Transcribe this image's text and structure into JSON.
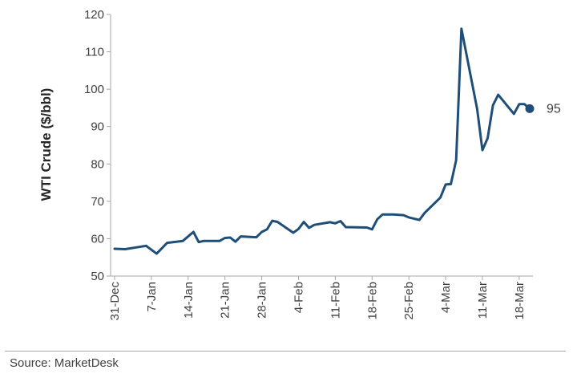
{
  "chart_data": {
    "type": "line",
    "title": "",
    "xlabel": "",
    "ylabel": "WTI Crude ($/bbl)",
    "ylim": [
      50,
      120
    ],
    "yticks": [
      50,
      60,
      70,
      80,
      90,
      100,
      110,
      120
    ],
    "xtick_labels": [
      "31-Dec",
      "7-Jan",
      "14-Jan",
      "21-Jan",
      "28-Jan",
      "4-Feb",
      "11-Feb",
      "18-Feb",
      "25-Feb",
      "4-Mar",
      "11-Mar",
      "18-Mar"
    ],
    "xtick_index": [
      0,
      7,
      14,
      21,
      28,
      35,
      42,
      49,
      56,
      63,
      70,
      77
    ],
    "x_range": [
      0,
      79
    ],
    "series": [
      {
        "name": "WTI Crude",
        "color": "#1f4e79",
        "points": [
          [
            0,
            57.3
          ],
          [
            2,
            57.2
          ],
          [
            6,
            58.1
          ],
          [
            8,
            56.0
          ],
          [
            10,
            58.9
          ],
          [
            13,
            59.4
          ],
          [
            15,
            61.8
          ],
          [
            16,
            59.1
          ],
          [
            17,
            59.4
          ],
          [
            20,
            59.4
          ],
          [
            21,
            60.2
          ],
          [
            22,
            60.3
          ],
          [
            23,
            59.2
          ],
          [
            24,
            60.6
          ],
          [
            27,
            60.4
          ],
          [
            28,
            61.8
          ],
          [
            29,
            62.5
          ],
          [
            30,
            64.8
          ],
          [
            31,
            64.5
          ],
          [
            34,
            61.6
          ],
          [
            35,
            62.6
          ],
          [
            36,
            64.5
          ],
          [
            37,
            62.9
          ],
          [
            38,
            63.7
          ],
          [
            41,
            64.4
          ],
          [
            42,
            64.1
          ],
          [
            43,
            64.7
          ],
          [
            44,
            63.1
          ],
          [
            48,
            63.0
          ],
          [
            49,
            62.5
          ],
          [
            50,
            65.2
          ],
          [
            51,
            66.5
          ],
          [
            53,
            66.5
          ],
          [
            55,
            66.3
          ],
          [
            56,
            65.7
          ],
          [
            58,
            65.0
          ],
          [
            59,
            66.9
          ],
          [
            62,
            71.0
          ],
          [
            63,
            74.5
          ],
          [
            64,
            74.6
          ],
          [
            65,
            81.0
          ],
          [
            66,
            116.2
          ],
          [
            69,
            94.7
          ],
          [
            70,
            83.7
          ],
          [
            71,
            86.9
          ],
          [
            72,
            95.7
          ],
          [
            73,
            98.5
          ],
          [
            76,
            93.4
          ],
          [
            77,
            96.0
          ],
          [
            78,
            96.0
          ],
          [
            79,
            94.8
          ]
        ],
        "end_label": "95"
      }
    ],
    "legend": "none",
    "grid": false
  },
  "source": "Source: MarketDesk"
}
